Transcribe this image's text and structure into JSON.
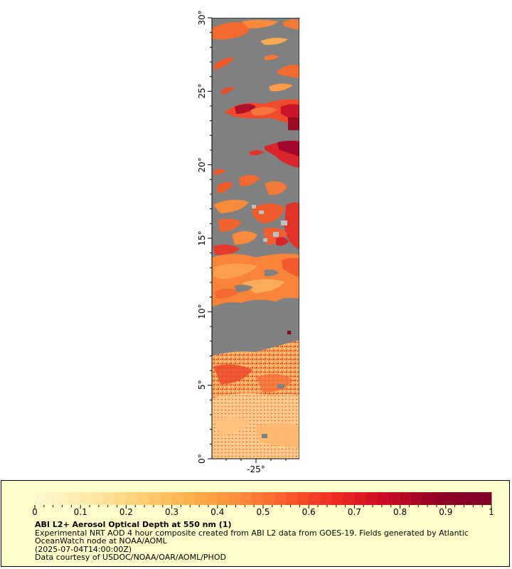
{
  "map": {
    "lat_ticks": [
      "0°",
      "5°",
      "10°",
      "15°",
      "20°",
      "25°",
      "30°"
    ],
    "lon_ticks": [
      "-25°"
    ],
    "lat_range": [
      0,
      30
    ],
    "lon_center_label": "-25°",
    "colors": {
      "no_data": "#808080",
      "cloud_gap": "#c0c0c0"
    }
  },
  "legend": {
    "title": "ABI L2+ Aerosol Optical Depth at 550 nm (1)",
    "lines": [
      "Experimental NRT AOD 4 hour composite created from ABI L2 data from GOES-19. Fields generated by Atlantic OceanWatch node at NOAA/AOML",
      "(2025-07-04T14:00:00Z)",
      "Data courtesy of USDOC/NOAA/OAR/AOML/PHOD"
    ],
    "colorbar_ticks": [
      "0",
      "0.1",
      "0.2",
      "0.3",
      "0.4",
      "0.5",
      "0.6",
      "0.7",
      "0.8",
      "0.9",
      "1"
    ],
    "colorbar_range": [
      0,
      1
    ],
    "colorbar_colors": [
      "#fff7cc",
      "#ffe9a8",
      "#fed176",
      "#feb24c",
      "#fd8d3c",
      "#fc5a2a",
      "#ec2a22",
      "#c90a24",
      "#930026",
      "#800026"
    ]
  }
}
